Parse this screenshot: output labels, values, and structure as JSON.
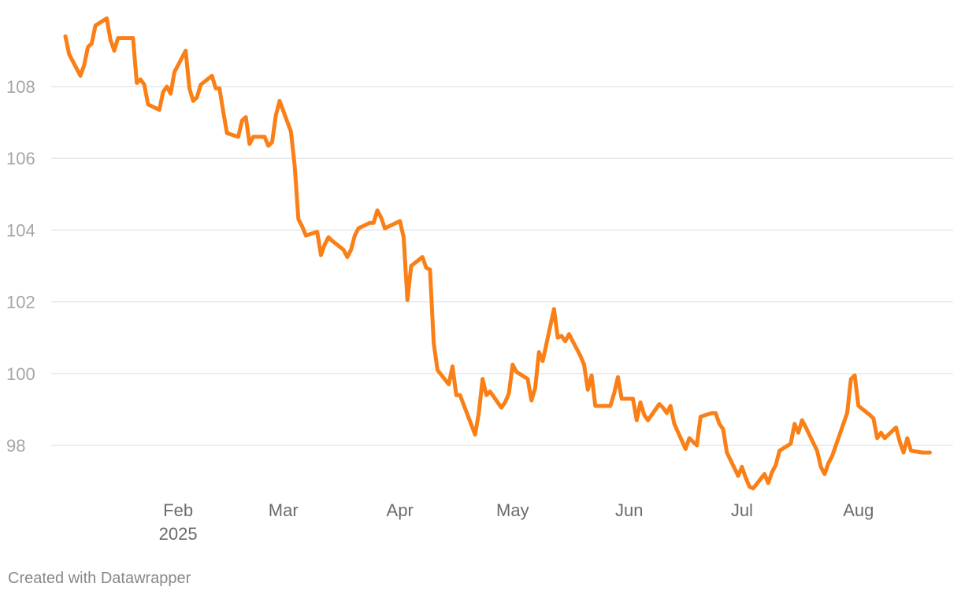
{
  "chart_data": {
    "type": "line",
    "title": "",
    "xlabel": "",
    "ylabel": "",
    "x_ticks": [
      {
        "date": "2025-02-01",
        "label": "Feb",
        "sublabel": "2025"
      },
      {
        "date": "2025-03-01",
        "label": "Mar",
        "sublabel": ""
      },
      {
        "date": "2025-04-01",
        "label": "Apr",
        "sublabel": ""
      },
      {
        "date": "2025-05-01",
        "label": "May",
        "sublabel": ""
      },
      {
        "date": "2025-06-01",
        "label": "Jun",
        "sublabel": ""
      },
      {
        "date": "2025-07-01",
        "label": "Jul",
        "sublabel": ""
      },
      {
        "date": "2025-08-01",
        "label": "Aug",
        "sublabel": ""
      }
    ],
    "y_ticks": [
      98,
      100,
      102,
      104,
      106,
      108
    ],
    "ylim": [
      96.3,
      110.2
    ],
    "xlim": [
      "2025-01-02",
      "2025-08-22"
    ],
    "grid": true,
    "color": "#fa7f16",
    "series": [
      {
        "name": "",
        "points": [
          [
            "2025-01-02",
            109.4
          ],
          [
            "2025-01-03",
            108.9
          ],
          [
            "2025-01-06",
            108.3
          ],
          [
            "2025-01-07",
            108.6
          ],
          [
            "2025-01-08",
            109.1
          ],
          [
            "2025-01-09",
            109.2
          ],
          [
            "2025-01-10",
            109.7
          ],
          [
            "2025-01-13",
            109.9
          ],
          [
            "2025-01-14",
            109.3
          ],
          [
            "2025-01-15",
            109.0
          ],
          [
            "2025-01-16",
            109.35
          ],
          [
            "2025-01-17",
            109.35
          ],
          [
            "2025-01-20",
            109.35
          ],
          [
            "2025-01-21",
            108.1
          ],
          [
            "2025-01-22",
            108.2
          ],
          [
            "2025-01-23",
            108.05
          ],
          [
            "2025-01-24",
            107.5
          ],
          [
            "2025-01-27",
            107.35
          ],
          [
            "2025-01-28",
            107.85
          ],
          [
            "2025-01-29",
            108.0
          ],
          [
            "2025-01-30",
            107.8
          ],
          [
            "2025-01-31",
            108.4
          ],
          [
            "2025-02-03",
            109.0
          ],
          [
            "2025-02-04",
            107.95
          ],
          [
            "2025-02-05",
            107.6
          ],
          [
            "2025-02-06",
            107.7
          ],
          [
            "2025-02-07",
            108.05
          ],
          [
            "2025-02-10",
            108.3
          ],
          [
            "2025-02-11",
            107.95
          ],
          [
            "2025-02-12",
            107.95
          ],
          [
            "2025-02-13",
            107.3
          ],
          [
            "2025-02-14",
            106.7
          ],
          [
            "2025-02-17",
            106.6
          ],
          [
            "2025-02-18",
            107.05
          ],
          [
            "2025-02-19",
            107.15
          ],
          [
            "2025-02-20",
            106.4
          ],
          [
            "2025-02-21",
            106.6
          ],
          [
            "2025-02-24",
            106.6
          ],
          [
            "2025-02-25",
            106.35
          ],
          [
            "2025-02-26",
            106.45
          ],
          [
            "2025-02-27",
            107.2
          ],
          [
            "2025-02-28",
            107.6
          ],
          [
            "2025-03-03",
            106.75
          ],
          [
            "2025-03-04",
            105.8
          ],
          [
            "2025-03-05",
            104.3
          ],
          [
            "2025-03-06",
            104.1
          ],
          [
            "2025-03-07",
            103.85
          ],
          [
            "2025-03-10",
            103.95
          ],
          [
            "2025-03-11",
            103.3
          ],
          [
            "2025-03-12",
            103.6
          ],
          [
            "2025-03-13",
            103.8
          ],
          [
            "2025-03-14",
            103.7
          ],
          [
            "2025-03-17",
            103.45
          ],
          [
            "2025-03-18",
            103.25
          ],
          [
            "2025-03-19",
            103.45
          ],
          [
            "2025-03-20",
            103.85
          ],
          [
            "2025-03-21",
            104.05
          ],
          [
            "2025-03-24",
            104.2
          ],
          [
            "2025-03-25",
            104.2
          ],
          [
            "2025-03-26",
            104.55
          ],
          [
            "2025-03-27",
            104.35
          ],
          [
            "2025-03-28",
            104.05
          ],
          [
            "2025-03-31",
            104.2
          ],
          [
            "2025-04-01",
            104.25
          ],
          [
            "2025-04-02",
            103.8
          ],
          [
            "2025-04-03",
            102.05
          ],
          [
            "2025-04-04",
            103.0
          ],
          [
            "2025-04-07",
            103.25
          ],
          [
            "2025-04-08",
            102.95
          ],
          [
            "2025-04-09",
            102.9
          ],
          [
            "2025-04-10",
            100.85
          ],
          [
            "2025-04-11",
            100.1
          ],
          [
            "2025-04-14",
            99.7
          ],
          [
            "2025-04-15",
            100.2
          ],
          [
            "2025-04-16",
            99.4
          ],
          [
            "2025-04-17",
            99.4
          ],
          [
            "2025-04-21",
            98.3
          ],
          [
            "2025-04-22",
            98.9
          ],
          [
            "2025-04-23",
            99.85
          ],
          [
            "2025-04-24",
            99.4
          ],
          [
            "2025-04-25",
            99.5
          ],
          [
            "2025-04-28",
            99.05
          ],
          [
            "2025-04-29",
            99.2
          ],
          [
            "2025-04-30",
            99.45
          ],
          [
            "2025-05-01",
            100.25
          ],
          [
            "2025-05-02",
            100.05
          ],
          [
            "2025-05-05",
            99.85
          ],
          [
            "2025-05-06",
            99.25
          ],
          [
            "2025-05-07",
            99.6
          ],
          [
            "2025-05-08",
            100.6
          ],
          [
            "2025-05-09",
            100.35
          ],
          [
            "2025-05-12",
            101.8
          ],
          [
            "2025-05-13",
            101.0
          ],
          [
            "2025-05-14",
            101.05
          ],
          [
            "2025-05-15",
            100.9
          ],
          [
            "2025-05-16",
            101.1
          ],
          [
            "2025-05-19",
            100.5
          ],
          [
            "2025-05-20",
            100.25
          ],
          [
            "2025-05-21",
            99.55
          ],
          [
            "2025-05-22",
            99.95
          ],
          [
            "2025-05-23",
            99.1
          ],
          [
            "2025-05-26",
            99.1
          ],
          [
            "2025-05-27",
            99.1
          ],
          [
            "2025-05-28",
            99.45
          ],
          [
            "2025-05-29",
            99.9
          ],
          [
            "2025-05-30",
            99.3
          ],
          [
            "2025-06-02",
            99.3
          ],
          [
            "2025-06-03",
            98.7
          ],
          [
            "2025-06-04",
            99.2
          ],
          [
            "2025-06-05",
            98.85
          ],
          [
            "2025-06-06",
            98.7
          ],
          [
            "2025-06-09",
            99.15
          ],
          [
            "2025-06-10",
            99.05
          ],
          [
            "2025-06-11",
            98.9
          ],
          [
            "2025-06-12",
            99.1
          ],
          [
            "2025-06-13",
            98.6
          ],
          [
            "2025-06-16",
            97.9
          ],
          [
            "2025-06-17",
            98.2
          ],
          [
            "2025-06-18",
            98.1
          ],
          [
            "2025-06-19",
            98.0
          ],
          [
            "2025-06-20",
            98.8
          ],
          [
            "2025-06-23",
            98.9
          ],
          [
            "2025-06-24",
            98.9
          ],
          [
            "2025-06-25",
            98.6
          ],
          [
            "2025-06-26",
            98.45
          ],
          [
            "2025-06-27",
            97.8
          ],
          [
            "2025-06-30",
            97.15
          ],
          [
            "2025-07-01",
            97.4
          ],
          [
            "2025-07-02",
            97.1
          ],
          [
            "2025-07-03",
            96.85
          ],
          [
            "2025-07-04",
            96.8
          ],
          [
            "2025-07-07",
            97.2
          ],
          [
            "2025-07-08",
            96.95
          ],
          [
            "2025-07-09",
            97.25
          ],
          [
            "2025-07-10",
            97.45
          ],
          [
            "2025-07-11",
            97.85
          ],
          [
            "2025-07-14",
            98.05
          ],
          [
            "2025-07-15",
            98.6
          ],
          [
            "2025-07-16",
            98.35
          ],
          [
            "2025-07-17",
            98.7
          ],
          [
            "2025-07-18",
            98.5
          ],
          [
            "2025-07-21",
            97.85
          ],
          [
            "2025-07-22",
            97.4
          ],
          [
            "2025-07-23",
            97.2
          ],
          [
            "2025-07-24",
            97.5
          ],
          [
            "2025-07-25",
            97.7
          ],
          [
            "2025-07-28",
            98.6
          ],
          [
            "2025-07-29",
            98.9
          ],
          [
            "2025-07-30",
            99.85
          ],
          [
            "2025-07-31",
            99.95
          ],
          [
            "2025-08-01",
            99.1
          ],
          [
            "2025-08-04",
            98.85
          ],
          [
            "2025-08-05",
            98.75
          ],
          [
            "2025-08-06",
            98.2
          ],
          [
            "2025-08-07",
            98.35
          ],
          [
            "2025-08-08",
            98.2
          ],
          [
            "2025-08-11",
            98.5
          ],
          [
            "2025-08-12",
            98.1
          ],
          [
            "2025-08-13",
            97.8
          ],
          [
            "2025-08-14",
            98.2
          ],
          [
            "2025-08-15",
            97.85
          ],
          [
            "2025-08-18",
            97.8
          ],
          [
            "2025-08-19",
            97.8
          ],
          [
            "2025-08-20",
            97.8
          ]
        ]
      }
    ]
  },
  "footer": {
    "credit": "Created with Datawrapper"
  }
}
